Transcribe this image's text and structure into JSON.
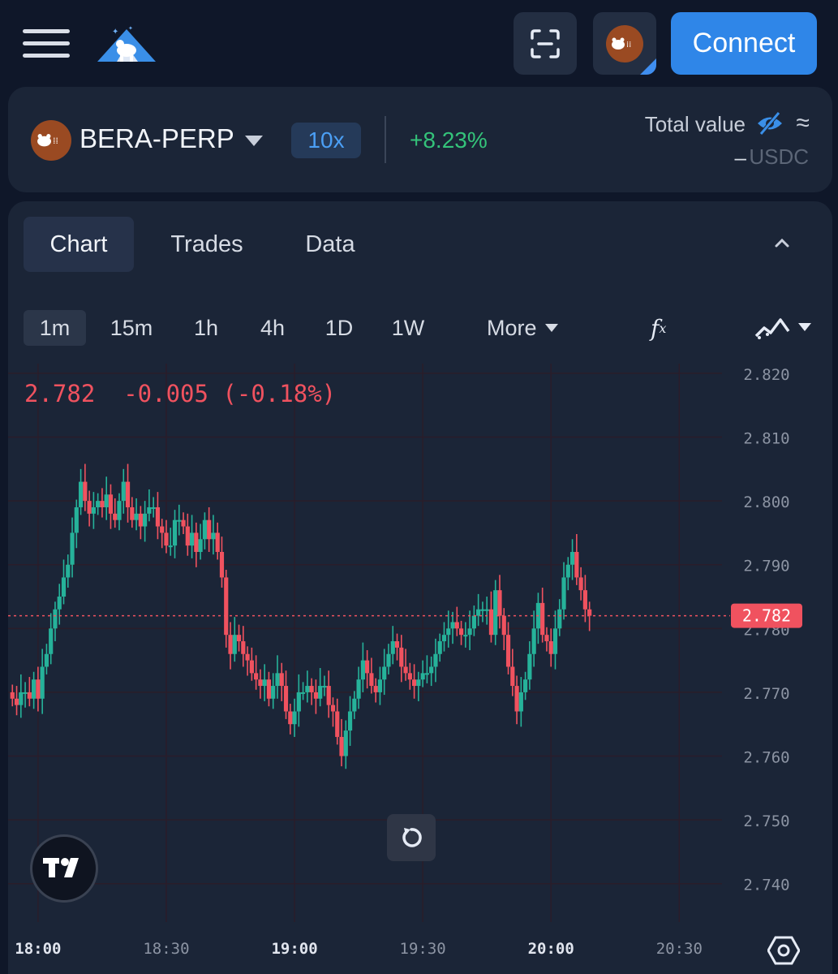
{
  "header": {
    "menu_icon": "hamburger-menu-icon",
    "logo_icon": "bear-mountain-logo",
    "scan_icon": "scan-icon",
    "connect_label": "Connect",
    "brand_color": "#2f86e8"
  },
  "market": {
    "name": "BERA-PERP",
    "leverage": "10x",
    "change": "+8.23%",
    "total_value_label": "Total value",
    "approx_symbol": "≈",
    "total_value": "–",
    "total_unit": "USDC",
    "positive_color": "#34c37a"
  },
  "tabs": [
    {
      "label": "Chart",
      "active": true
    },
    {
      "label": "Trades",
      "active": false
    },
    {
      "label": "Data",
      "active": false
    }
  ],
  "intervals": [
    {
      "label": "1m",
      "active": true
    },
    {
      "label": "15m",
      "active": false
    },
    {
      "label": "1h",
      "active": false
    },
    {
      "label": "4h",
      "active": false
    },
    {
      "label": "1D",
      "active": false
    },
    {
      "label": "1W",
      "active": false
    }
  ],
  "more_label": "More",
  "chart_data": {
    "type": "candlestick",
    "ohlc_legend": "2.782  -0.005 (-0.18%)",
    "last_price": "2.782",
    "y_ticks": [
      "2.820",
      "2.810",
      "2.800",
      "2.790",
      "2.780",
      "2.770",
      "2.760",
      "2.750",
      "2.740"
    ],
    "x_ticks": [
      {
        "label": "18:00",
        "bold": true
      },
      {
        "label": "18:30",
        "bold": false
      },
      {
        "label": "19:00",
        "bold": true
      },
      {
        "label": "19:30",
        "bold": false
      },
      {
        "label": "20:00",
        "bold": true
      },
      {
        "label": "20:30",
        "bold": false
      }
    ],
    "ylim": [
      2.735,
      2.8205
    ],
    "x_range_minutes": [
      "17:53",
      "20:40"
    ],
    "grid": true,
    "up_color": "#26b29a",
    "down_color": "#f0525f",
    "candles_close": [
      2.769,
      2.768,
      2.77,
      2.77,
      2.769,
      2.772,
      2.769,
      2.774,
      2.776,
      2.78,
      2.783,
      2.785,
      2.788,
      2.79,
      2.795,
      2.799,
      2.803,
      2.8,
      2.798,
      2.799,
      2.8,
      2.799,
      2.801,
      2.798,
      2.797,
      2.8,
      2.803,
      2.799,
      2.797,
      2.798,
      2.796,
      2.798,
      2.799,
      2.799,
      2.796,
      2.795,
      2.793,
      2.793,
      2.797,
      2.797,
      2.796,
      2.793,
      2.795,
      2.792,
      2.794,
      2.797,
      2.794,
      2.795,
      2.792,
      2.788,
      2.779,
      2.776,
      2.779,
      2.778,
      2.776,
      2.775,
      2.773,
      2.772,
      2.771,
      2.772,
      2.769,
      2.771,
      2.773,
      2.771,
      2.767,
      2.765,
      2.767,
      2.77,
      2.77,
      2.771,
      2.77,
      2.769,
      2.771,
      2.771,
      2.768,
      2.767,
      2.763,
      2.76,
      2.764,
      2.767,
      2.769,
      2.772,
      2.775,
      2.773,
      2.771,
      2.77,
      2.772,
      2.774,
      2.776,
      2.778,
      2.777,
      2.774,
      2.773,
      2.772,
      2.771,
      2.772,
      2.773,
      2.773,
      2.774,
      2.776,
      2.778,
      2.779,
      2.78,
      2.781,
      2.78,
      2.779,
      2.779,
      2.78,
      2.782,
      2.783,
      2.783,
      2.783,
      2.779,
      2.786,
      2.782,
      2.779,
      2.774,
      2.771,
      2.767,
      2.77,
      2.772,
      2.776,
      2.78,
      2.784,
      2.779,
      2.778,
      2.776,
      2.78,
      2.783,
      2.788,
      2.79,
      2.792,
      2.788,
      2.786,
      2.783,
      2.782
    ]
  },
  "icons": {
    "collapse": "chevron-up-icon",
    "fx": "indicators-fx-icon",
    "chart_type": "chart-type-icon",
    "reset": "reset-view-icon",
    "tradingview": "tradingview-logo",
    "settings": "settings-hexagon-icon",
    "privacy": "eye-slash-icon"
  }
}
